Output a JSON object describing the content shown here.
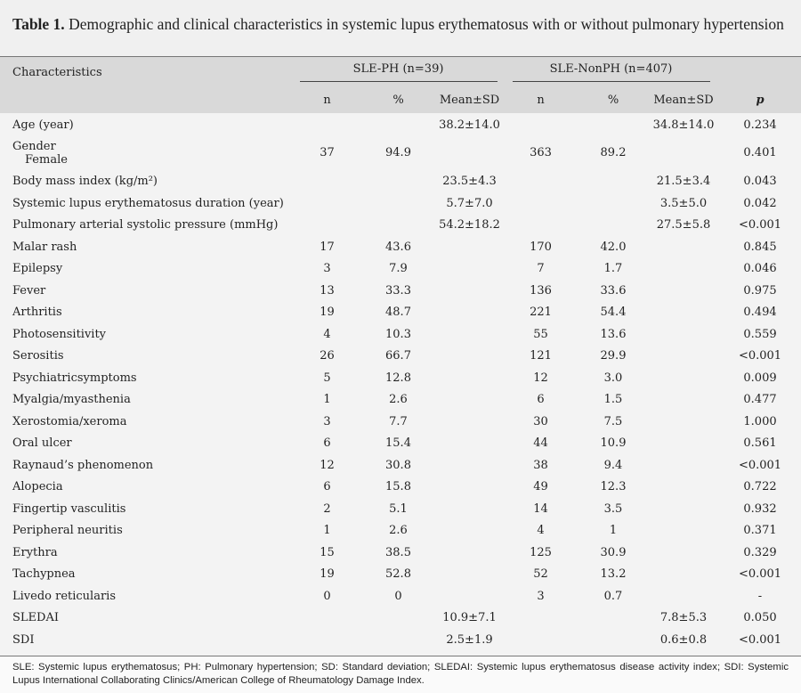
{
  "caption": {
    "label": "Table 1.",
    "text": "Demographic and clinical characteristics in systemic lupus erythematosus with or without pulmonary hypertension"
  },
  "header": {
    "characteristics": "Characteristics",
    "groups": [
      "SLE-PH (n=39)",
      "SLE-NonPH (n=407)"
    ],
    "columns": [
      "n",
      "%",
      "Mean±SD",
      "n",
      "%",
      "Mean±SD",
      "p"
    ]
  },
  "table": {
    "rows": [
      [
        "Age (year)",
        null,
        null,
        "38.2±14.0",
        null,
        null,
        "34.8±14.0",
        "0.234"
      ],
      [
        [
          "Gender",
          "Female"
        ],
        "37",
        "94.9",
        null,
        "363",
        "89.2",
        null,
        "0.401"
      ],
      [
        "Body mass index (kg/m²)",
        null,
        null,
        "23.5±4.3",
        null,
        null,
        "21.5±3.4",
        "0.043"
      ],
      [
        "Systemic lupus erythematosus duration (year)",
        null,
        null,
        "5.7±7.0",
        null,
        null,
        "3.5±5.0",
        "0.042"
      ],
      [
        "Pulmonary arterial systolic pressure (mmHg)",
        null,
        null,
        "54.2±18.2",
        null,
        null,
        "27.5±5.8",
        "<0.001"
      ],
      [
        "Malar rash",
        "17",
        "43.6",
        null,
        "170",
        "42.0",
        null,
        "0.845"
      ],
      [
        "Epilepsy",
        "3",
        "7.9",
        null,
        "7",
        "1.7",
        null,
        "0.046"
      ],
      [
        "Fever",
        "13",
        "33.3",
        null,
        "136",
        "33.6",
        null,
        "0.975"
      ],
      [
        "Arthritis",
        "19",
        "48.7",
        null,
        "221",
        "54.4",
        null,
        "0.494"
      ],
      [
        "Photosensitivity",
        "4",
        "10.3",
        null,
        "55",
        "13.6",
        null,
        "0.559"
      ],
      [
        "Serositis",
        "26",
        "66.7",
        null,
        "121",
        "29.9",
        null,
        "<0.001"
      ],
      [
        "Psychiatricsymptoms",
        "5",
        "12.8",
        null,
        "12",
        "3.0",
        null,
        "0.009"
      ],
      [
        "Myalgia/myasthenia",
        "1",
        "2.6",
        null,
        "6",
        "1.5",
        null,
        "0.477"
      ],
      [
        "Xerostomia/xeroma",
        "3",
        "7.7",
        null,
        "30",
        "7.5",
        null,
        "1.000"
      ],
      [
        "Oral ulcer",
        "6",
        "15.4",
        null,
        "44",
        "10.9",
        null,
        "0.561"
      ],
      [
        "Raynaud’s phenomenon",
        "12",
        "30.8",
        null,
        "38",
        "9.4",
        null,
        "<0.001"
      ],
      [
        "Alopecia",
        "6",
        "15.8",
        null,
        "49",
        "12.3",
        null,
        "0.722"
      ],
      [
        "Fingertip vasculitis",
        "2",
        "5.1",
        null,
        "14",
        "3.5",
        null,
        "0.932"
      ],
      [
        "Peripheral neuritis",
        "1",
        "2.6",
        null,
        "4",
        "1",
        null,
        "0.371"
      ],
      [
        "Erythra",
        "15",
        "38.5",
        null,
        "125",
        "30.9",
        null,
        "0.329"
      ],
      [
        "Tachypnea",
        "19",
        "52.8",
        null,
        "52",
        "13.2",
        null,
        "<0.001"
      ],
      [
        "Livedo reticularis",
        "0",
        "0",
        null,
        "3",
        "0.7",
        null,
        "-"
      ],
      [
        "SLEDAI",
        null,
        null,
        "10.9±7.1",
        null,
        null,
        "7.8±5.3",
        "0.050"
      ],
      [
        "SDI",
        null,
        null,
        "2.5±1.9",
        null,
        null,
        "0.6±0.8",
        "<0.001"
      ]
    ]
  },
  "footnote": "SLE: Systemic lupus erythematosus; PH: Pulmonary hypertension; SD: Standard deviation; SLEDAI: Systemic lupus erythematosus disease activity index; SDI: Systemic Lupus International Collaborating Clinics/American College of Rheumatology Damage Index."
}
